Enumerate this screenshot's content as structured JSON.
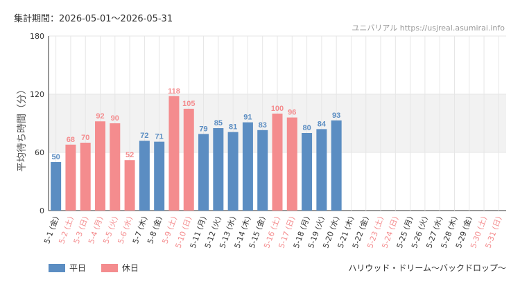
{
  "header": {
    "period": "集計期間：2026-05-01～2026-05-31",
    "source": "ユニバリアル  https://usjreal.asumirai.info",
    "attraction": "ハリウッド・ドリーム～バックドロップ～"
  },
  "legend": {
    "weekday_label": "平日",
    "holiday_label": "休日"
  },
  "colors": {
    "weekday": "#5b8dc2",
    "holiday": "#f48c8e",
    "band": "#f2f2f2",
    "grid": "#e6e6e6"
  },
  "chart_data": {
    "type": "bar",
    "ylabel": "平均待ち時間（分）",
    "ylim": [
      0,
      180
    ],
    "yticks": [
      0,
      60,
      120,
      180
    ],
    "shaded_band": [
      60,
      120
    ],
    "categories": [
      "5-1 (金)",
      "5-2 (土)",
      "5-3 (日)",
      "5-4 (月)",
      "5-5 (火)",
      "5-6 (水)",
      "5-7 (木)",
      "5-8 (金)",
      "5-9 (土)",
      "5-10 (日)",
      "5-11 (月)",
      "5-12 (火)",
      "5-13 (水)",
      "5-14 (木)",
      "5-15 (金)",
      "5-16 (土)",
      "5-17 (日)",
      "5-18 (月)",
      "5-19 (火)",
      "5-20 (水)",
      "5-21 (木)",
      "5-22 (金)",
      "5-23 (土)",
      "5-24 (日)",
      "5-25 (月)",
      "5-26 (火)",
      "5-27 (水)",
      "5-28 (木)",
      "5-29 (金)",
      "5-30 (土)",
      "5-31 (日)"
    ],
    "day_type": [
      "weekday",
      "holiday",
      "holiday",
      "holiday",
      "holiday",
      "holiday",
      "weekday",
      "weekday",
      "holiday",
      "holiday",
      "weekday",
      "weekday",
      "weekday",
      "weekday",
      "weekday",
      "holiday",
      "holiday",
      "weekday",
      "weekday",
      "weekday",
      "weekday",
      "weekday",
      "holiday",
      "holiday",
      "weekday",
      "weekday",
      "weekday",
      "weekday",
      "weekday",
      "holiday",
      "holiday"
    ],
    "values": [
      50,
      68,
      70,
      92,
      90,
      52,
      72,
      71,
      118,
      105,
      79,
      85,
      81,
      91,
      83,
      100,
      96,
      80,
      84,
      93,
      null,
      null,
      null,
      null,
      null,
      null,
      null,
      null,
      null,
      null,
      null
    ]
  }
}
